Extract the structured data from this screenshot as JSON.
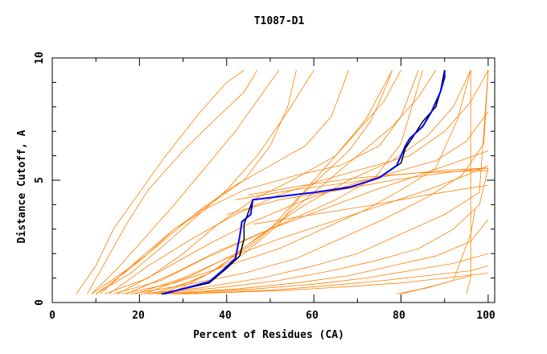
{
  "chart_data": {
    "type": "line",
    "title": "T1087-D1",
    "xlabel": "Percent of Residues (CA)",
    "ylabel": "Distance Cutoff, A",
    "xlim": [
      0,
      101.5
    ],
    "ylim": [
      0,
      10
    ],
    "xticks": [
      "0",
      "20",
      "40",
      "60",
      "80",
      "100"
    ],
    "yticks": [
      "0",
      "5",
      "10"
    ],
    "grid": false,
    "colors": {
      "models": "#ff8000",
      "highlight": "#0000ff",
      "reference": "#000000"
    },
    "orange_series": [
      [
        [
          5.5,
          0.35
        ],
        [
          10,
          1.5
        ],
        [
          14,
          3
        ],
        [
          20,
          4.5
        ],
        [
          26,
          6
        ],
        [
          34,
          7.8
        ],
        [
          40,
          9
        ],
        [
          44,
          9.5
        ]
      ],
      [
        [
          8,
          0.35
        ],
        [
          12,
          1.6
        ],
        [
          17,
          3.2
        ],
        [
          22,
          4.6
        ],
        [
          30,
          6.2
        ],
        [
          38,
          7.6
        ],
        [
          44,
          8.6
        ],
        [
          47,
          9.5
        ]
      ],
      [
        [
          9,
          0.35
        ],
        [
          15,
          1.4
        ],
        [
          22,
          2.8
        ],
        [
          28,
          4
        ],
        [
          35,
          5.5
        ],
        [
          42,
          7
        ],
        [
          48,
          8.5
        ],
        [
          52,
          9.5
        ]
      ],
      [
        [
          10,
          0.35
        ],
        [
          18,
          1.2
        ],
        [
          26,
          2.4
        ],
        [
          33,
          3.5
        ],
        [
          40,
          4.6
        ],
        [
          47,
          6
        ],
        [
          54,
          7.8
        ],
        [
          60,
          9.5
        ]
      ],
      [
        [
          12,
          0.35
        ],
        [
          22,
          1
        ],
        [
          30,
          2
        ],
        [
          38,
          3.2
        ],
        [
          46,
          4.2
        ],
        [
          55,
          5
        ],
        [
          65,
          6
        ],
        [
          72,
          7.5
        ],
        [
          78,
          9.5
        ]
      ],
      [
        [
          14,
          0.35
        ],
        [
          25,
          0.9
        ],
        [
          35,
          1.8
        ],
        [
          45,
          2.6
        ],
        [
          55,
          3.4
        ],
        [
          65,
          4.2
        ],
        [
          74,
          5.1
        ],
        [
          80,
          6.5
        ],
        [
          85,
          9.5
        ]
      ],
      [
        [
          16,
          0.35
        ],
        [
          28,
          0.8
        ],
        [
          40,
          1.5
        ],
        [
          52,
          2.2
        ],
        [
          62,
          3
        ],
        [
          72,
          3.8
        ],
        [
          80,
          4.6
        ],
        [
          88,
          5.5
        ],
        [
          93,
          7.5
        ],
        [
          96,
          9.5
        ]
      ],
      [
        [
          18,
          0.35
        ],
        [
          30,
          0.7
        ],
        [
          44,
          1.2
        ],
        [
          56,
          1.8
        ],
        [
          66,
          2.6
        ],
        [
          76,
          3.4
        ],
        [
          86,
          4.3
        ],
        [
          94,
          5.2
        ],
        [
          99,
          6.5
        ],
        [
          100,
          9.5
        ]
      ],
      [
        [
          20,
          0.35
        ],
        [
          34,
          0.6
        ],
        [
          48,
          1
        ],
        [
          60,
          1.5
        ],
        [
          70,
          2
        ],
        [
          80,
          2.8
        ],
        [
          90,
          3.6
        ],
        [
          98,
          4.5
        ],
        [
          100,
          9.5
        ]
      ],
      [
        [
          22,
          0.35
        ],
        [
          38,
          0.6
        ],
        [
          52,
          0.9
        ],
        [
          64,
          1.3
        ],
        [
          74,
          1.7
        ],
        [
          84,
          2.2
        ],
        [
          92,
          3
        ],
        [
          98,
          4
        ],
        [
          100,
          5.5
        ]
      ],
      [
        [
          24,
          0.35
        ],
        [
          42,
          0.55
        ],
        [
          56,
          0.8
        ],
        [
          68,
          1.1
        ],
        [
          78,
          1.5
        ],
        [
          88,
          1.9
        ],
        [
          96,
          2.5
        ],
        [
          100,
          3.4
        ]
      ],
      [
        [
          26,
          0.35
        ],
        [
          46,
          0.55
        ],
        [
          60,
          0.75
        ],
        [
          72,
          1
        ],
        [
          82,
          1.3
        ],
        [
          92,
          1.6
        ],
        [
          100,
          2
        ]
      ],
      [
        [
          28,
          0.35
        ],
        [
          50,
          0.5
        ],
        [
          64,
          0.7
        ],
        [
          76,
          0.9
        ],
        [
          86,
          1.1
        ],
        [
          96,
          1.3
        ],
        [
          100,
          1.5
        ]
      ],
      [
        [
          30,
          0.35
        ],
        [
          54,
          0.5
        ],
        [
          68,
          0.65
        ],
        [
          80,
          0.8
        ],
        [
          90,
          1
        ],
        [
          100,
          1.2
        ]
      ],
      [
        [
          11,
          0.35
        ],
        [
          20,
          1.8
        ],
        [
          28,
          3
        ],
        [
          36,
          3.9
        ],
        [
          44,
          4.6
        ],
        [
          56,
          5.2
        ],
        [
          66,
          5.6
        ],
        [
          75,
          6.4
        ],
        [
          80,
          7.6
        ],
        [
          84,
          9.5
        ]
      ],
      [
        [
          13,
          0.35
        ],
        [
          22,
          1.5
        ],
        [
          32,
          2.6
        ],
        [
          42,
          3.6
        ],
        [
          52,
          4.4
        ],
        [
          62,
          5
        ],
        [
          72,
          5.5
        ],
        [
          82,
          6
        ],
        [
          90,
          7
        ],
        [
          96,
          8.2
        ],
        [
          100,
          9.5
        ]
      ],
      [
        [
          15,
          0.35
        ],
        [
          26,
          1.4
        ],
        [
          36,
          2.4
        ],
        [
          46,
          3.3
        ],
        [
          58,
          4.2
        ],
        [
          70,
          4.9
        ],
        [
          80,
          5.4
        ],
        [
          88,
          5.8
        ],
        [
          95,
          6.6
        ],
        [
          100,
          7.8
        ]
      ],
      [
        [
          17,
          0.35
        ],
        [
          28,
          1.2
        ],
        [
          38,
          2.1
        ],
        [
          50,
          3
        ],
        [
          62,
          3.8
        ],
        [
          74,
          4.6
        ],
        [
          84,
          5.2
        ],
        [
          92,
          5.7
        ],
        [
          100,
          6.2
        ]
      ],
      [
        [
          19,
          0.35
        ],
        [
          30,
          1
        ],
        [
          40,
          1.8
        ],
        [
          52,
          2.6
        ],
        [
          64,
          3.3
        ],
        [
          76,
          4
        ],
        [
          86,
          4.6
        ],
        [
          95,
          5.2
        ],
        [
          100,
          5.6
        ]
      ],
      [
        [
          21,
          0.35
        ],
        [
          32,
          1.1
        ],
        [
          42,
          2
        ],
        [
          50,
          3
        ],
        [
          56,
          4.2
        ],
        [
          62,
          5.2
        ],
        [
          68,
          6.2
        ],
        [
          73,
          7.4
        ],
        [
          76,
          8.6
        ],
        [
          78,
          9.5
        ]
      ],
      [
        [
          23,
          0.35
        ],
        [
          34,
          1
        ],
        [
          44,
          2
        ],
        [
          52,
          3.2
        ],
        [
          58,
          4.6
        ],
        [
          64,
          5.8
        ],
        [
          70,
          7
        ],
        [
          76,
          8.2
        ],
        [
          80,
          9.5
        ]
      ],
      [
        [
          25,
          0.35
        ],
        [
          36,
          1.2
        ],
        [
          46,
          2.4
        ],
        [
          54,
          3.6
        ],
        [
          62,
          4.8
        ],
        [
          70,
          6
        ],
        [
          78,
          7.2
        ],
        [
          84,
          8.4
        ],
        [
          88,
          9.5
        ]
      ],
      [
        [
          27,
          0.35
        ],
        [
          38,
          1.4
        ],
        [
          48,
          2.8
        ],
        [
          58,
          4
        ],
        [
          68,
          5
        ],
        [
          78,
          5.8
        ],
        [
          86,
          6.8
        ],
        [
          92,
          8
        ],
        [
          96,
          9.5
        ]
      ],
      [
        [
          9,
          0.35
        ],
        [
          16,
          1.2
        ],
        [
          22,
          2
        ],
        [
          28,
          3
        ],
        [
          36,
          4
        ],
        [
          44,
          5
        ],
        [
          50,
          6.4
        ],
        [
          54,
          8
        ],
        [
          56,
          9.5
        ]
      ],
      [
        [
          10,
          0.35
        ],
        [
          18,
          1.4
        ],
        [
          26,
          2.6
        ],
        [
          34,
          3.8
        ],
        [
          42,
          4.8
        ],
        [
          50,
          5.6
        ],
        [
          58,
          6.4
        ],
        [
          64,
          7.6
        ],
        [
          68,
          9.5
        ]
      ],
      [
        [
          79,
          0.35
        ],
        [
          86,
          0.6
        ],
        [
          92,
          0.9
        ],
        [
          96,
          1.1
        ]
      ],
      [
        [
          80,
          0.35
        ],
        [
          88,
          0.7
        ],
        [
          92,
          0.9
        ],
        [
          96,
          2.8
        ],
        [
          97,
          3.8
        ]
      ],
      [
        [
          95,
          0.35
        ],
        [
          96,
          1
        ],
        [
          96,
          9.5
        ]
      ],
      [
        [
          42,
          4.2
        ],
        [
          55,
          4.6
        ],
        [
          68,
          4.9
        ],
        [
          78,
          5.2
        ],
        [
          90,
          5.4
        ],
        [
          100,
          5.5
        ]
      ],
      [
        [
          40,
          3.6
        ],
        [
          52,
          4.2
        ],
        [
          66,
          4.6
        ],
        [
          78,
          5
        ],
        [
          90,
          5.3
        ],
        [
          100,
          5.5
        ]
      ],
      [
        [
          45,
          4.4
        ],
        [
          58,
          4.8
        ],
        [
          70,
          5.1
        ],
        [
          84,
          5.3
        ],
        [
          100,
          5.4
        ]
      ],
      [
        [
          46,
          3.2
        ],
        [
          60,
          3.6
        ],
        [
          74,
          4
        ],
        [
          86,
          4.4
        ],
        [
          100,
          4.8
        ]
      ]
    ],
    "highlight_series": [
      [
        25.5,
        0.35
      ],
      [
        36,
        0.85
      ],
      [
        39,
        1.3
      ],
      [
        42,
        1.8
      ],
      [
        43,
        2.7
      ],
      [
        43.5,
        3.3
      ],
      [
        45.5,
        3.6
      ],
      [
        46,
        4.2
      ],
      [
        60,
        4.5
      ],
      [
        68,
        4.7
      ],
      [
        75,
        5.1
      ],
      [
        79,
        5.6
      ],
      [
        81,
        6.4
      ],
      [
        82,
        6.7
      ],
      [
        85,
        7.2
      ],
      [
        87,
        7.8
      ],
      [
        89,
        8.6
      ],
      [
        90,
        9.2
      ],
      [
        90,
        9.5
      ]
    ],
    "reference_series": [
      [
        25,
        0.35
      ],
      [
        36,
        0.8
      ],
      [
        40,
        1.4
      ],
      [
        43,
        1.9
      ],
      [
        44,
        2.6
      ],
      [
        44,
        3.2
      ],
      [
        46,
        4.2
      ],
      [
        60,
        4.5
      ],
      [
        69,
        4.75
      ],
      [
        75,
        5.1
      ],
      [
        80,
        5.7
      ],
      [
        81,
        6.3
      ],
      [
        82.5,
        6.7
      ],
      [
        85,
        7.4
      ],
      [
        88,
        8
      ],
      [
        89,
        8.6
      ],
      [
        90,
        9.5
      ]
    ]
  }
}
